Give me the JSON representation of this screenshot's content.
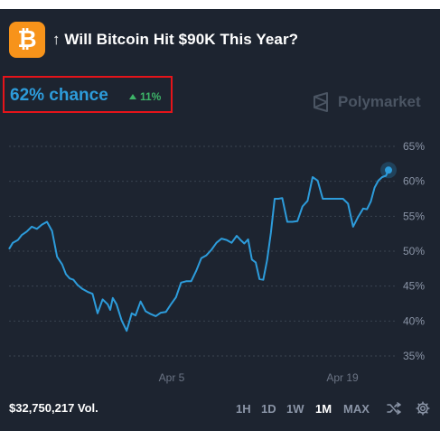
{
  "header": {
    "logo_glyph": "₿",
    "title": "↑ Will Bitcoin Hit $90K This Year?"
  },
  "odds": {
    "chance_label": "62% chance",
    "change_label": "11%",
    "change_color": "#3db468"
  },
  "watermark": {
    "label": "Polymarket",
    "icon": "polymarket-logo-icon"
  },
  "footer": {
    "volume": "$32,750,217 Vol.",
    "timeframes": [
      "1H",
      "1D",
      "1W",
      "1M",
      "MAX"
    ],
    "active_timeframe": "1M",
    "icons": [
      "shuffle-icon",
      "gear-icon"
    ]
  },
  "colors": {
    "background": "#1d2430",
    "line": "#2d9cdb",
    "grid": "#3a4350",
    "axis_text": "#8a94a6",
    "highlight_box": "#e5141a",
    "logo": "#f7931a"
  },
  "chart_data": {
    "type": "line",
    "title": "",
    "xlabel": "",
    "ylabel": "",
    "x_ticks": [
      "Apr 5",
      "Apr 19"
    ],
    "y_ticks": [
      "65%",
      "60%",
      "55%",
      "50%",
      "45%",
      "40%",
      "35%"
    ],
    "ylim": [
      32,
      66
    ],
    "xlim": [
      0,
      30
    ],
    "grid": true,
    "series": [
      {
        "x": [
          0,
          0.3,
          0.7,
          1,
          1.4,
          1.8,
          2.2,
          2.6,
          3,
          3.4,
          3.8,
          4.2,
          4.5,
          4.8,
          5.1,
          5.4,
          5.8,
          6.2,
          6.6,
          7,
          7.4,
          7.8,
          8,
          8.2,
          8.5,
          8.9,
          9.3,
          9.7,
          10,
          10.4,
          10.8,
          11.2,
          11.6,
          12,
          12.4,
          12.8,
          13.2,
          13.6,
          14,
          14.4,
          14.8,
          15.2,
          15.6,
          16,
          16.4,
          16.8,
          17.2,
          17.6,
          18,
          18.3,
          18.6,
          18.9,
          19.2,
          19.5,
          19.8,
          20.1,
          20.4,
          20.7,
          21,
          21.3,
          21.6,
          22,
          22.4,
          22.8,
          23.2,
          23.6,
          24,
          24.4,
          24.8,
          25.2,
          25.6,
          26,
          26.4,
          26.8,
          27.2,
          27.6,
          28,
          28.3,
          28.6,
          28.9,
          29.2,
          29.5,
          29.8,
          30
        ],
        "y": [
          50.3,
          51.2,
          51.6,
          52.3,
          52.8,
          53.5,
          53.2,
          53.8,
          54.2,
          52.9,
          49.2,
          48.1,
          46.7,
          46.1,
          45.9,
          45.2,
          44.6,
          44.2,
          43.9,
          41.1,
          43.1,
          42.4,
          41.6,
          43.3,
          42.4,
          40.1,
          38.6,
          41.1,
          40.8,
          42.8,
          41.4,
          41.0,
          40.7,
          41.2,
          41.3,
          42.4,
          43.4,
          45.5,
          45.7,
          45.7,
          47.2,
          49.0,
          49.4,
          50.2,
          51.2,
          51.8,
          51.6,
          51.2,
          52.2,
          51.6,
          51.1,
          51.7,
          48.8,
          48.4,
          46.0,
          45.9,
          48.7,
          52.6,
          57.5,
          57.5,
          57.6,
          54.2,
          54.2,
          54.3,
          56.4,
          57.2,
          60.6,
          60.1,
          57.5,
          57.5,
          57.5,
          57.5,
          57.5,
          56.8,
          53.5,
          54.9,
          56.1,
          56.0,
          57.1,
          59.1,
          60.1,
          60.6,
          60.8,
          61.6
        ]
      }
    ]
  }
}
